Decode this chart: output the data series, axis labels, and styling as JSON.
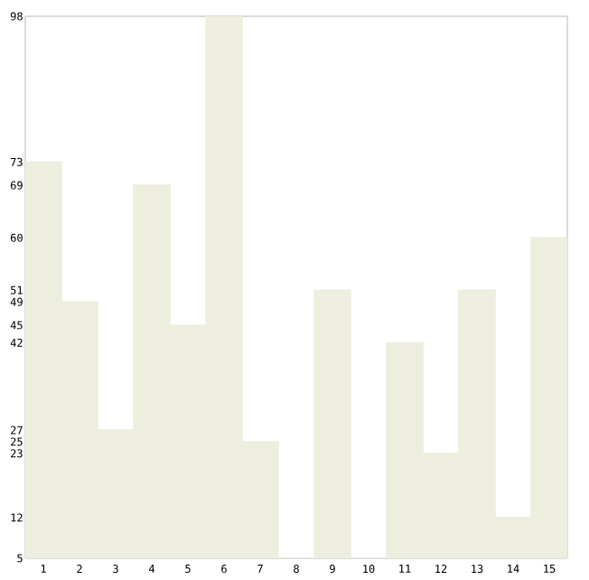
{
  "chart_data": {
    "type": "bar",
    "categories": [
      "1",
      "2",
      "3",
      "4",
      "5",
      "6",
      "7",
      "8",
      "9",
      "10",
      "11",
      "12",
      "13",
      "14",
      "15"
    ],
    "values": [
      73,
      49,
      27,
      69,
      45,
      98,
      25,
      5,
      51,
      5,
      42,
      23,
      51,
      12,
      60
    ],
    "color": "#eeeedf",
    "ylim": [
      5,
      98
    ],
    "yticks": [
      5,
      12,
      23,
      25,
      27,
      42,
      45,
      49,
      51,
      60,
      69,
      73,
      98
    ],
    "grid": false
  }
}
